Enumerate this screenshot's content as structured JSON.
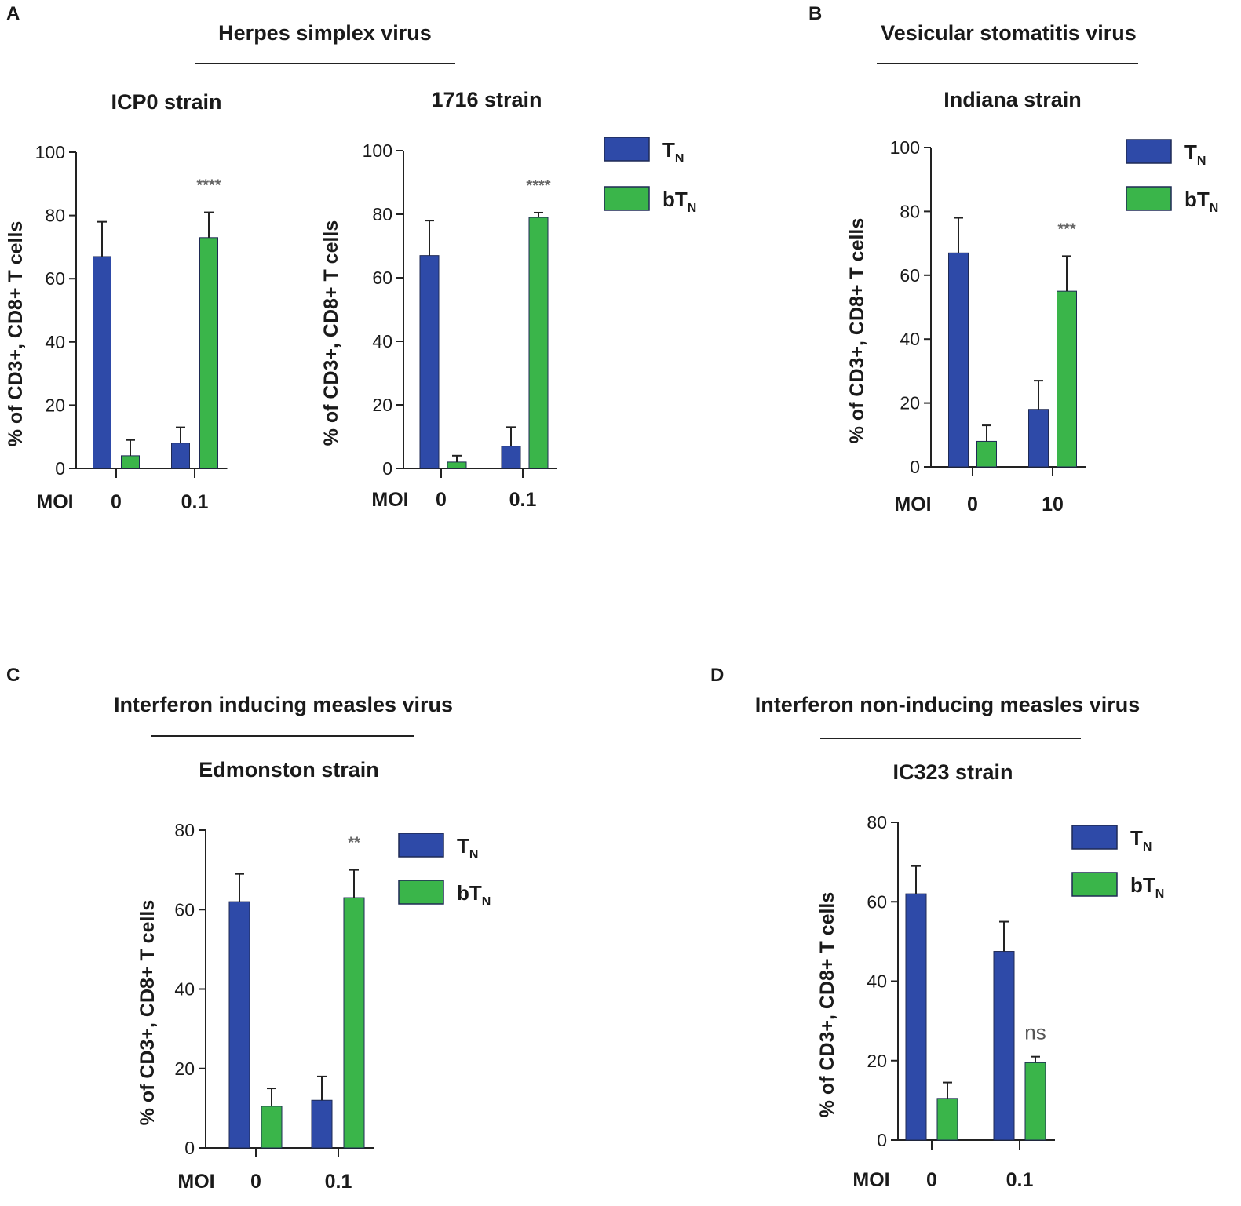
{
  "colors": {
    "TN": "#2e4aa8",
    "bTN": "#3ab54a",
    "errorbar": "#222222"
  },
  "panels": [
    {
      "letter": "A",
      "virus": "Herpes simplex virus"
    },
    {
      "letter": "B",
      "virus": "Vesicular stomatitis virus"
    },
    {
      "letter": "C",
      "virus": "Interferon inducing measles virus"
    },
    {
      "letter": "D",
      "virus": "Interferon non-inducing measles virus"
    }
  ],
  "chart_data": [
    {
      "type": "bar",
      "panel": "A",
      "title": "ICP0 strain",
      "xlabel": "MOI",
      "ylabel": "% of CD3+, CD8+ T cells",
      "ylim": [
        0,
        100
      ],
      "yticks": [
        0,
        20,
        40,
        60,
        80,
        100
      ],
      "categories": [
        "0",
        "0.1"
      ],
      "series": [
        {
          "name": "TN",
          "values": [
            67,
            8
          ],
          "errors": [
            11,
            5
          ]
        },
        {
          "name": "bTN",
          "values": [
            4,
            73
          ],
          "errors": [
            5,
            8
          ]
        }
      ],
      "significance": {
        "category": "0.1",
        "label": "****"
      },
      "legend": []
    },
    {
      "type": "bar",
      "panel": "A",
      "title": "1716 strain",
      "xlabel": "MOI",
      "ylabel": "% of CD3+, CD8+ T cells",
      "ylim": [
        0,
        100
      ],
      "yticks": [
        0,
        20,
        40,
        60,
        80,
        100
      ],
      "categories": [
        "0",
        "0.1"
      ],
      "series": [
        {
          "name": "TN",
          "values": [
            67,
            7
          ],
          "errors": [
            11,
            6
          ]
        },
        {
          "name": "bTN",
          "values": [
            2,
            79
          ],
          "errors": [
            2,
            1.5
          ]
        }
      ],
      "significance": {
        "category": "0.1",
        "label": "****"
      },
      "legend": [
        {
          "base": "T",
          "sub": "N"
        },
        {
          "base": "bT",
          "sub": "N"
        }
      ]
    },
    {
      "type": "bar",
      "panel": "B",
      "title": "Indiana strain",
      "xlabel": "MOI",
      "ylabel": "% of CD3+, CD8+ T cells",
      "ylim": [
        0,
        100
      ],
      "yticks": [
        0,
        20,
        40,
        60,
        80,
        100
      ],
      "categories": [
        "0",
        "10"
      ],
      "series": [
        {
          "name": "TN",
          "values": [
            67,
            18
          ],
          "errors": [
            11,
            9
          ]
        },
        {
          "name": "bTN",
          "values": [
            8,
            55
          ],
          "errors": [
            5,
            11
          ]
        }
      ],
      "significance": {
        "category": "10",
        "label": "***"
      },
      "legend": [
        {
          "base": "T",
          "sub": "N"
        },
        {
          "base": "bT",
          "sub": "N"
        }
      ]
    },
    {
      "type": "bar",
      "panel": "C",
      "title": "Edmonston strain",
      "xlabel": "MOI",
      "ylabel": "% of CD3+, CD8+ T cells",
      "ylim": [
        0,
        80
      ],
      "yticks": [
        0,
        20,
        40,
        60,
        80
      ],
      "categories": [
        "0",
        "0.1"
      ],
      "series": [
        {
          "name": "TN",
          "values": [
            62,
            12
          ],
          "errors": [
            7,
            6
          ]
        },
        {
          "name": "bTN",
          "values": [
            10.5,
            63
          ],
          "errors": [
            4.5,
            7
          ]
        }
      ],
      "significance": {
        "category": "0.1",
        "label": "**"
      },
      "legend": [
        {
          "base": "T",
          "sub": "N"
        },
        {
          "base": "bT",
          "sub": "N"
        }
      ]
    },
    {
      "type": "bar",
      "panel": "D",
      "title": "IC323 strain",
      "xlabel": "MOI",
      "ylabel": "% of CD3+, CD8+ T cells",
      "ylim": [
        0,
        80
      ],
      "yticks": [
        0,
        20,
        40,
        60,
        80
      ],
      "categories": [
        "0",
        "0.1"
      ],
      "series": [
        {
          "name": "TN",
          "values": [
            62,
            47.5
          ],
          "errors": [
            7,
            7.5
          ]
        },
        {
          "name": "bTN",
          "values": [
            10.5,
            19.5
          ],
          "errors": [
            4,
            1.5
          ]
        }
      ],
      "significance": {
        "category": "0.1",
        "label": "ns"
      },
      "legend": [
        {
          "base": "T",
          "sub": "N"
        },
        {
          "base": "bT",
          "sub": "N"
        }
      ]
    }
  ]
}
